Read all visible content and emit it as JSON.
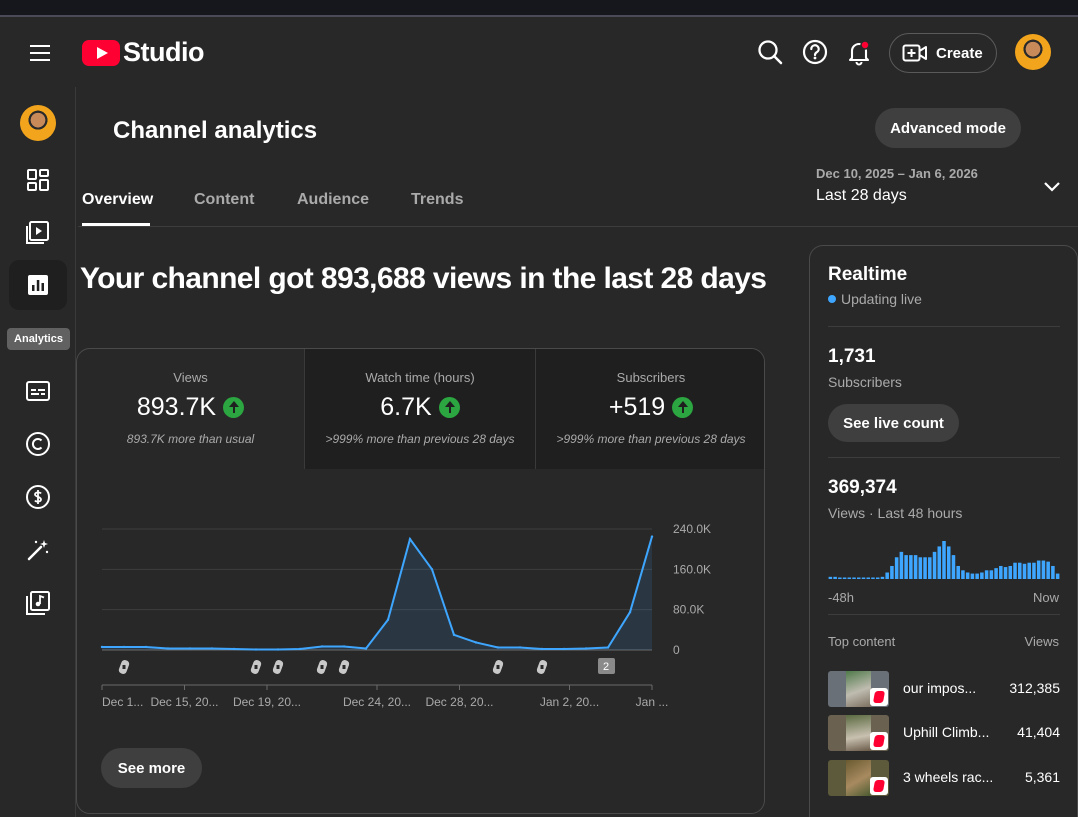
{
  "app": {
    "logo_text": "Studio"
  },
  "header": {
    "create_label": "Create"
  },
  "sidebar": {
    "tooltip": "Analytics"
  },
  "page": {
    "title": "Channel analytics",
    "advanced_mode": "Advanced mode"
  },
  "tabs": [
    {
      "label": "Overview",
      "active": true
    },
    {
      "label": "Content",
      "active": false
    },
    {
      "label": "Audience",
      "active": false
    },
    {
      "label": "Trends",
      "active": false
    }
  ],
  "date_range": {
    "dates": "Dec 10, 2025 – Jan 6, 2026",
    "label": "Last 28 days"
  },
  "headline": "Your channel got 893,688 views in the last 28 days",
  "metrics": [
    {
      "label": "Views",
      "value": "893.7K",
      "note": "893.7K more than usual"
    },
    {
      "label": "Watch time (hours)",
      "value": "6.7K",
      "note": ">999% more than previous 28 days"
    },
    {
      "label": "Subscribers",
      "value": "+519",
      "note": ">999% more than previous 28 days"
    }
  ],
  "chart_data": {
    "type": "area",
    "series": [
      {
        "values": [
          6000,
          6000,
          6000,
          3000,
          3000,
          3000,
          2000,
          1000,
          1000,
          2000,
          7000,
          7000,
          3000,
          60000,
          220000,
          160000,
          30000,
          15000,
          5000,
          5000,
          2000,
          2000,
          3000,
          5000,
          75000,
          225000
        ]
      }
    ],
    "ylim": [
      0,
      240000
    ],
    "y_ticks": [
      "240.0K",
      "160.0K",
      "80.0K",
      "0"
    ],
    "x_ticks": [
      "Dec 1...",
      "Dec 15, 20...",
      "Dec 19, 20...",
      "Dec 24, 20...",
      "Dec 28, 20...",
      "Jan 2, 20...",
      "Jan ..."
    ],
    "color": "#3ea6ff",
    "marker_badge": "2"
  },
  "see_more": "See more",
  "realtime": {
    "title": "Realtime",
    "live_text": "Updating live",
    "subscribers_value": "1,731",
    "subscribers_label": "Subscribers",
    "live_count_button": "See live count",
    "views_value": "369,374",
    "views_label": "Views · Last 48 hours",
    "bars": [
      2,
      2,
      1,
      1,
      1,
      1,
      1,
      1,
      1,
      1,
      1,
      2,
      6,
      12,
      20,
      25,
      22,
      22,
      22,
      20,
      20,
      20,
      25,
      30,
      35,
      30,
      22,
      12,
      8,
      6,
      5,
      5,
      6,
      8,
      8,
      10,
      12,
      11,
      12,
      15,
      15,
      14,
      15,
      15,
      17,
      17,
      16,
      12,
      5
    ],
    "start_label": "-48h",
    "end_label": "Now",
    "top_content_label": "Top content",
    "views_col_label": "Views",
    "top_content": [
      {
        "title": "our impos...",
        "views": "312,385"
      },
      {
        "title": "Uphill Climb...",
        "views": "41,404"
      },
      {
        "title": "3 wheels rac...",
        "views": "5,361"
      }
    ]
  },
  "colors": {
    "accent": "#3ea6ff",
    "positive": "#2ba640",
    "brand": "#ff0033"
  }
}
